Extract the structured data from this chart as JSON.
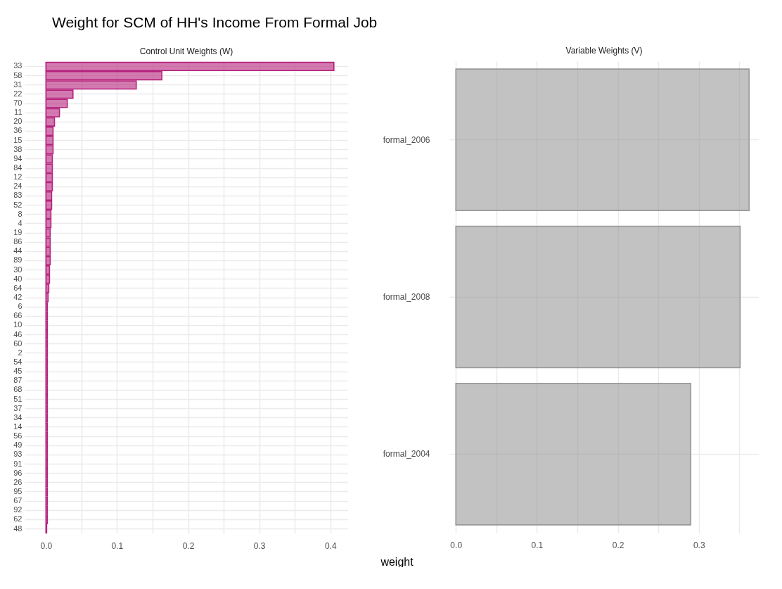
{
  "chart_data": [
    {
      "type": "bar",
      "title": "Weight for SCM of HH's Income From Formal Job",
      "subtitle": "Control Unit Weights (W)",
      "orientation": "horizontal",
      "grid": true,
      "categories": [
        "33",
        "58",
        "31",
        "22",
        "70",
        "11",
        "20",
        "36",
        "15",
        "38",
        "94",
        "84",
        "12",
        "24",
        "83",
        "52",
        "8",
        "4",
        "19",
        "86",
        "44",
        "89",
        "30",
        "40",
        "64",
        "42",
        "6",
        "66",
        "10",
        "46",
        "60",
        "2",
        "54",
        "45",
        "87",
        "68",
        "51",
        "37",
        "34",
        "14",
        "56",
        "49",
        "93",
        "91",
        "96",
        "26",
        "95",
        "67",
        "92",
        "62",
        "48"
      ],
      "series": [
        {
          "color": "#b5227d",
          "values": [
            0.405,
            0.163,
            0.127,
            0.038,
            0.03,
            0.019,
            0.012,
            0.01,
            0.01,
            0.01,
            0.009,
            0.009,
            0.009,
            0.009,
            0.008,
            0.008,
            0.007,
            0.007,
            0.006,
            0.006,
            0.006,
            0.006,
            0.005,
            0.005,
            0.004,
            0.003,
            0.002,
            0.002,
            0.002,
            0.002,
            0.002,
            0.002,
            0.002,
            0.002,
            0.002,
            0.002,
            0.002,
            0.002,
            0.002,
            0.002,
            0.002,
            0.002,
            0.002,
            0.002,
            0.002,
            0.002,
            0.002,
            0.002,
            0.002,
            0.002,
            0.001
          ]
        }
      ],
      "xlim": [
        -0.03,
        0.425
      ],
      "xticks": [
        {
          "value": 0.0,
          "label": "0.0"
        },
        {
          "value": 0.05,
          "label": null
        },
        {
          "value": 0.1,
          "label": "0.1"
        },
        {
          "value": 0.15,
          "label": null
        },
        {
          "value": 0.2,
          "label": "0.2"
        },
        {
          "value": 0.25,
          "label": null
        },
        {
          "value": 0.3,
          "label": "0.3"
        },
        {
          "value": 0.35,
          "label": null
        },
        {
          "value": 0.4,
          "label": "0.4"
        }
      ]
    },
    {
      "type": "bar",
      "subtitle": "Variable Weights (V)",
      "xlabel": "weight",
      "orientation": "horizontal",
      "grid": true,
      "categories": [
        "formal_2006",
        "formal_2008",
        "formal_2004"
      ],
      "series": [
        {
          "color": "#999999",
          "values": [
            0.362,
            0.351,
            0.29
          ]
        }
      ],
      "xlim": [
        -0.008,
        0.374
      ],
      "xticks": [
        {
          "value": 0.0,
          "label": "0.0"
        },
        {
          "value": 0.05,
          "label": null
        },
        {
          "value": 0.1,
          "label": "0.1"
        },
        {
          "value": 0.15,
          "label": null
        },
        {
          "value": 0.2,
          "label": "0.2"
        },
        {
          "value": 0.25,
          "label": null
        },
        {
          "value": 0.3,
          "label": "0.3"
        },
        {
          "value": 0.35,
          "label": null
        }
      ]
    }
  ]
}
